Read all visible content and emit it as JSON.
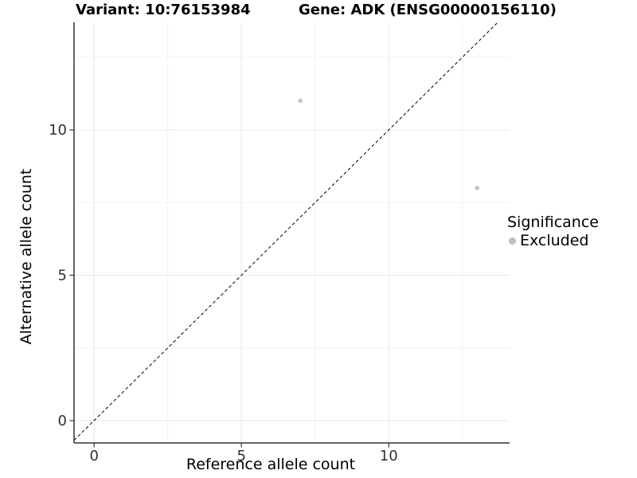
{
  "chart_data": {
    "type": "scatter",
    "title_left": "Variant: 10:76153984",
    "title_right": "Gene: ADK (ENSG00000156110)",
    "xlabel": "Reference allele count",
    "ylabel": "Alternative allele count",
    "x_ticks": [
      0,
      5,
      10
    ],
    "y_ticks": [
      0,
      5,
      10
    ],
    "x_minor_ticks": [
      2.5,
      7.5,
      12.5
    ],
    "y_minor_ticks": [
      2.5,
      7.5,
      12.5
    ],
    "xlim": [
      -0.68,
      14.1
    ],
    "ylim": [
      -0.77,
      13.7
    ],
    "grid": "on",
    "points": [
      {
        "x": 7,
        "y": 11,
        "series": "Excluded"
      },
      {
        "x": 13,
        "y": 8,
        "series": "Excluded"
      }
    ],
    "identity_line": {
      "slope": 1,
      "intercept": 0,
      "style": "dashed"
    },
    "legend": {
      "title": "Significance",
      "position": "right",
      "items": [
        {
          "label": "Excluded",
          "color": "#bdbdbd"
        }
      ]
    },
    "colors": {
      "point": "#c4c4c4",
      "grid_major": "#e8e8e8",
      "grid_minor": "#f3f3f3",
      "axis_line": "#333333",
      "tick_text": "#303030",
      "dashed_line": "#000000"
    }
  }
}
